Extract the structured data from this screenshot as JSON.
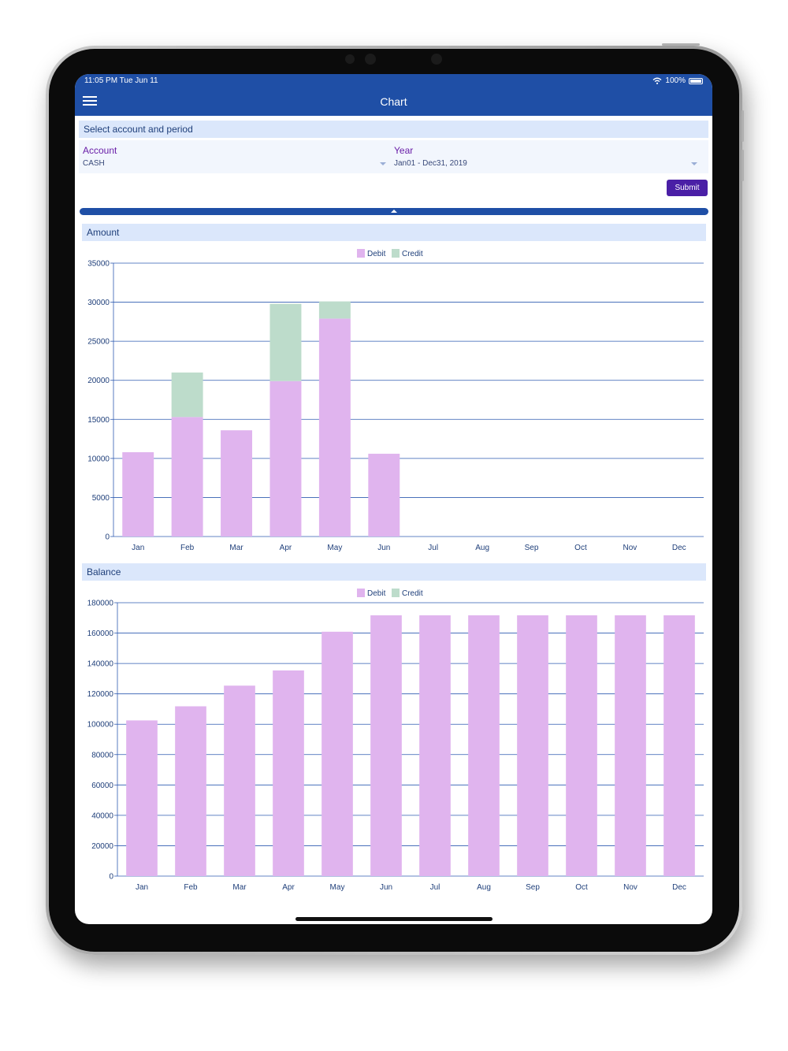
{
  "status_bar": {
    "time": "11:05 PM  Tue Jun 11",
    "battery": "100%"
  },
  "app_bar": {
    "title": "Chart",
    "menu_icon": "hamburger-menu-icon"
  },
  "filter": {
    "header": "Select account and period",
    "account_label": "Account",
    "account_value": "CASH",
    "year_label": "Year",
    "year_value": "Jan01 - Dec31, 2019",
    "submit_label": "Submit"
  },
  "colors": {
    "primary": "#1f4fa6",
    "debit": "#e0b4ee",
    "credit": "#bddccb",
    "submit": "#4a1fa6"
  },
  "amount_section": {
    "header": "Amount"
  },
  "balance_section": {
    "header": "Balance"
  },
  "chart_data": [
    {
      "type": "bar",
      "stacked": true,
      "categories": [
        "Jan",
        "Feb",
        "Mar",
        "Apr",
        "May",
        "Jun",
        "Jul",
        "Aug",
        "Sep",
        "Oct",
        "Nov",
        "Dec"
      ],
      "series": [
        {
          "name": "Debit",
          "values": [
            10800,
            15300,
            13600,
            19900,
            27900,
            10600,
            0,
            0,
            0,
            0,
            0,
            0
          ]
        },
        {
          "name": "Credit",
          "values": [
            0,
            5700,
            0,
            9900,
            2200,
            0,
            0,
            0,
            0,
            0,
            0,
            0
          ]
        }
      ],
      "yticks": [
        "0",
        "5000",
        "10000",
        "15000",
        "20000",
        "25000",
        "30000",
        "35000"
      ],
      "ylim": [
        0,
        35000
      ],
      "grid": true,
      "legend": "top-center"
    },
    {
      "type": "bar",
      "stacked": true,
      "categories": [
        "Jan",
        "Feb",
        "Mar",
        "Apr",
        "May",
        "Jun",
        "Jul",
        "Aug",
        "Sep",
        "Oct",
        "Nov",
        "Dec"
      ],
      "series": [
        {
          "name": "Debit",
          "values": [
            102500,
            111800,
            125400,
            135400,
            160900,
            171700,
            171700,
            171700,
            171700,
            171700,
            171700,
            171700
          ]
        },
        {
          "name": "Credit",
          "values": [
            0,
            0,
            0,
            0,
            0,
            0,
            0,
            0,
            0,
            0,
            0,
            0
          ]
        }
      ],
      "yticks": [
        "0",
        "20000",
        "40000",
        "60000",
        "80000",
        "100000",
        "120000",
        "140000",
        "160000",
        "180000"
      ],
      "ylim": [
        0,
        180000
      ],
      "grid": true,
      "legend": "top-center"
    }
  ]
}
